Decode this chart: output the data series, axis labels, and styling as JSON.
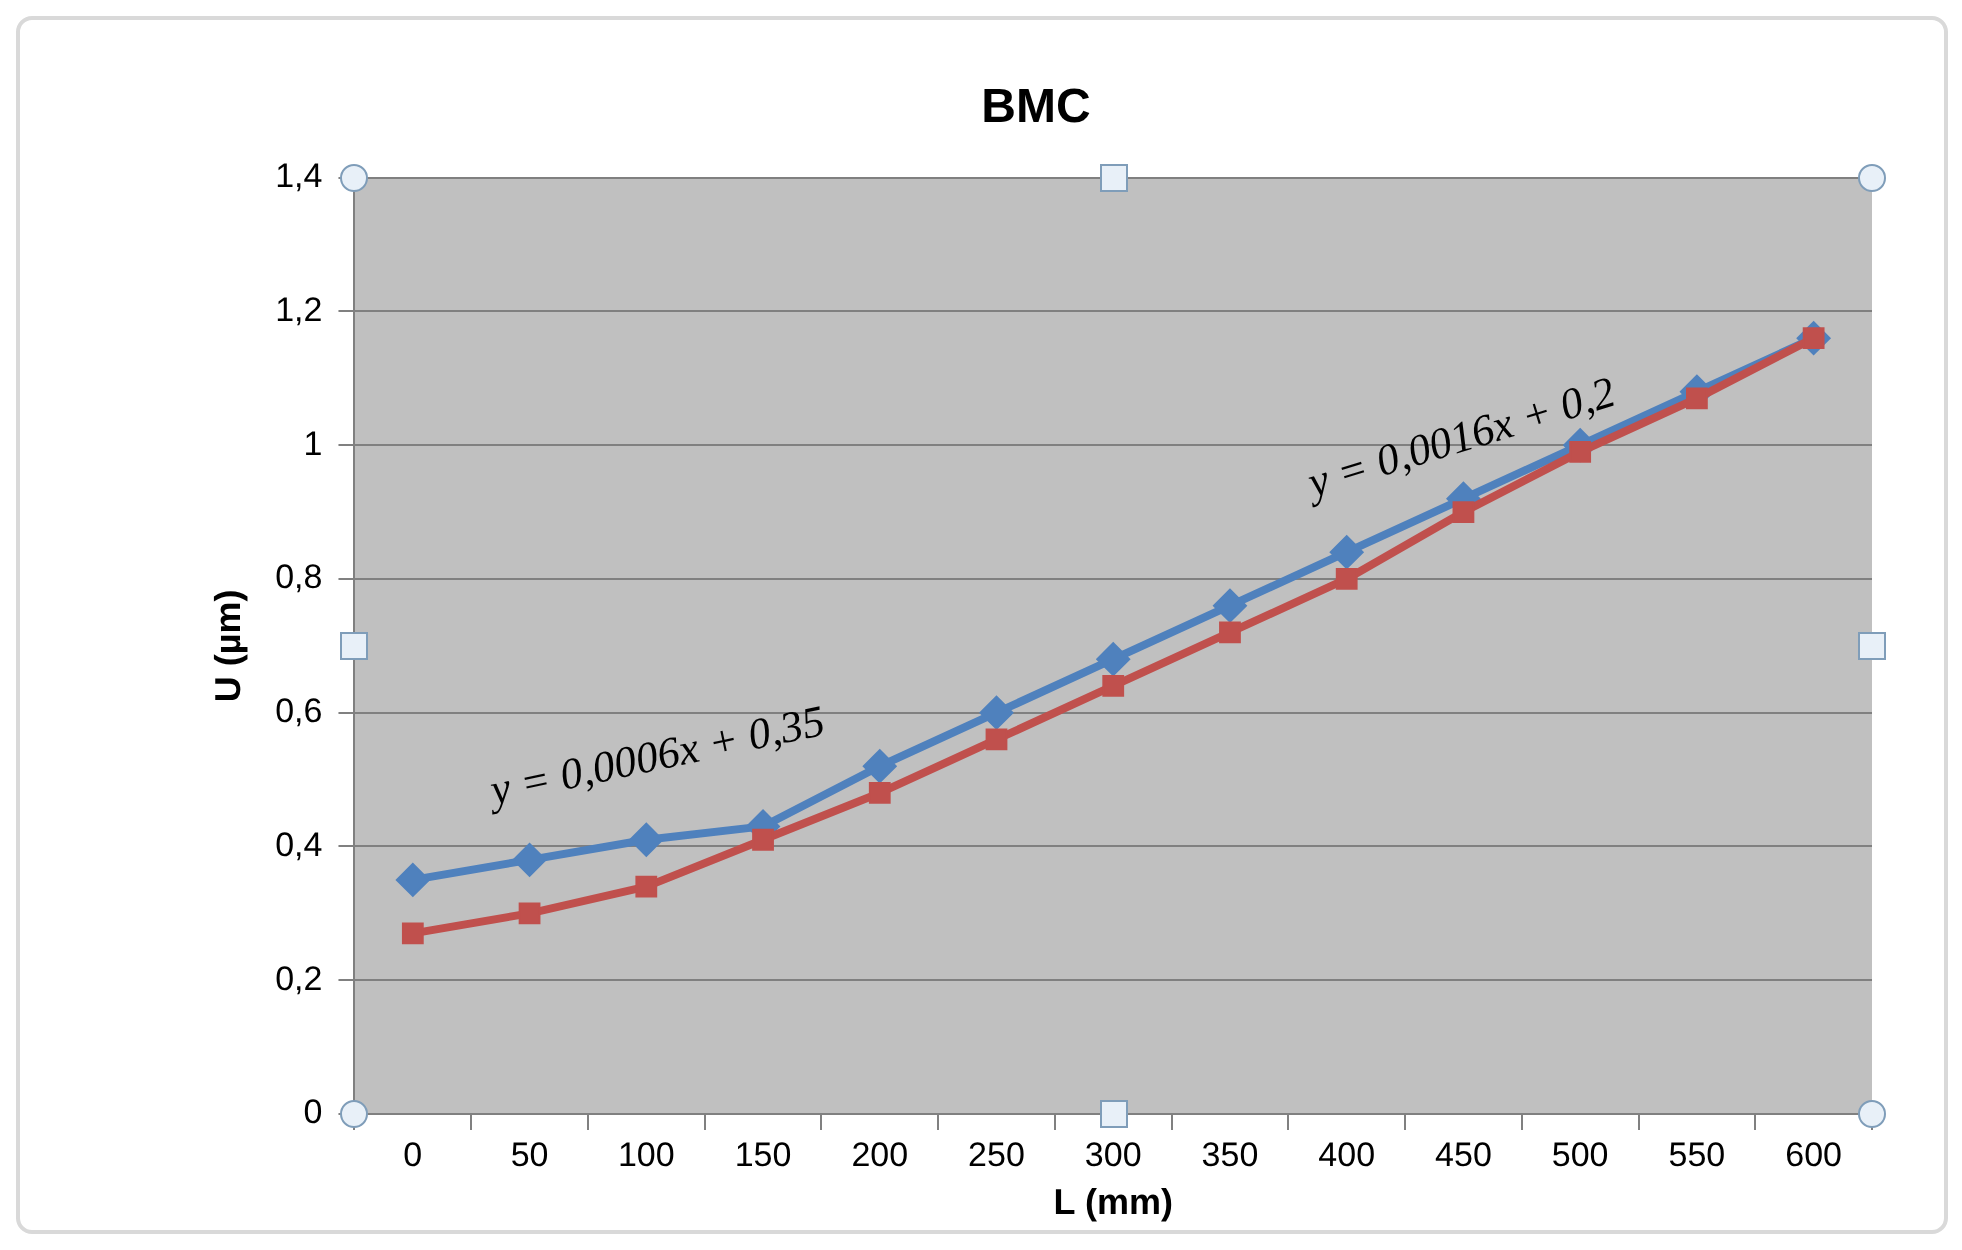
{
  "chart_data": {
    "type": "line",
    "title": "BMC",
    "xlabel": "L (mm)",
    "ylabel": "U (µm)",
    "categories": [
      "0",
      "50",
      "100",
      "150",
      "200",
      "250",
      "300",
      "350",
      "400",
      "450",
      "500",
      "550",
      "600"
    ],
    "series": [
      {
        "color": "#4f81bd",
        "marker": "diamond",
        "values": [
          0.35,
          0.38,
          0.41,
          0.43,
          0.52,
          0.6,
          0.68,
          0.76,
          0.84,
          0.92,
          1.0,
          1.08,
          1.16
        ]
      },
      {
        "color": "#c0504d",
        "marker": "square",
        "values": [
          0.27,
          0.3,
          0.34,
          0.41,
          0.48,
          0.56,
          0.64,
          0.72,
          0.8,
          0.9,
          0.99,
          1.07,
          1.16
        ]
      }
    ],
    "ylim": [
      0,
      1.4
    ],
    "yticks": [
      0,
      {
        "value": 0.2,
        "label": "0,2"
      },
      {
        "value": 0.4,
        "label": "0,4"
      },
      {
        "value": 0.6,
        "label": "0,6"
      },
      {
        "value": 0.8,
        "label": "0,8"
      },
      1,
      {
        "value": 1.2,
        "label": "1,2"
      },
      {
        "value": 1.4,
        "label": "1,4"
      }
    ],
    "annotations": [
      "y = 0,0006x + 0,35",
      "y = 0,0016x + 0,2"
    ],
    "grid": "y",
    "legend": false
  }
}
